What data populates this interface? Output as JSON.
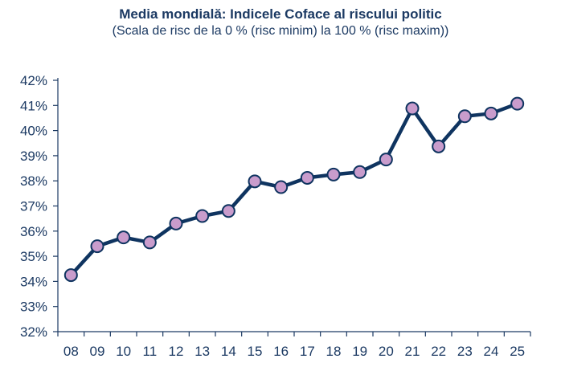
{
  "chart_data": {
    "type": "line",
    "title": "Media mondială: Indicele Coface al riscului politic",
    "subtitle": "(Scala de risc de la 0 % (risc minim) la 100 % (risc maxim))",
    "xlabel": "",
    "ylabel": "",
    "categories": [
      "08",
      "09",
      "10",
      "11",
      "12",
      "13",
      "14",
      "15",
      "16",
      "17",
      "18",
      "19",
      "20",
      "21",
      "22",
      "23",
      "24",
      "25"
    ],
    "series": [
      {
        "name": "Indicele Coface al riscului politic",
        "values": [
          34.25,
          35.4,
          35.75,
          35.55,
          36.3,
          36.6,
          36.8,
          37.98,
          37.75,
          38.12,
          38.25,
          38.35,
          38.85,
          40.88,
          39.37,
          40.57,
          40.68,
          41.07
        ],
        "line_color": "#0f3460",
        "marker_color": "#c99ccc"
      }
    ],
    "ylim": [
      32,
      42
    ],
    "yticks": [
      32,
      33,
      34,
      35,
      36,
      37,
      38,
      39,
      40,
      41,
      42
    ],
    "ytick_suffix": "%",
    "grid": false,
    "legend": "none"
  }
}
